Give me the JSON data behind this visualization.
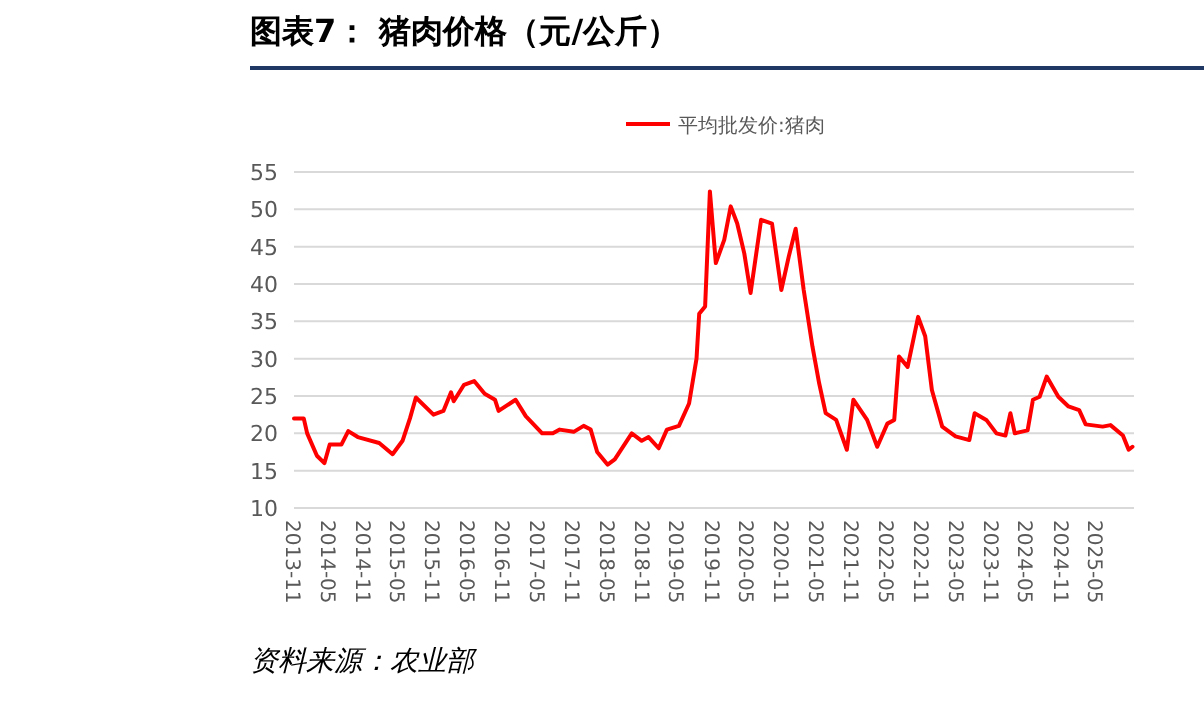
{
  "chart_data": {
    "type": "line",
    "title": "图表7：  猪肉价格（元/公斤）",
    "annotations": [
      "资料来源：农业部"
    ],
    "legend": "top",
    "grid": "y",
    "line_style": "solid",
    "marker": "none",
    "xlim": [
      "2013-11-01",
      "2025-11-15"
    ],
    "xticks": [
      "2013-11",
      "2014-05",
      "2014-11",
      "2015-05",
      "2015-11",
      "2016-05",
      "2016-11",
      "2017-05",
      "2017-11",
      "2018-05",
      "2018-11",
      "2019-05",
      "2019-11",
      "2020-05",
      "2020-11",
      "2021-05",
      "2021-11",
      "2022-05",
      "2022-11",
      "2023-05",
      "2023-11",
      "2024-05",
      "2024-11",
      "2025-05"
    ],
    "ylim": [
      10,
      55
    ],
    "yticks": [
      10,
      15,
      20,
      25,
      30,
      35,
      40,
      45,
      50,
      55
    ],
    "x": [
      "2013-11-01",
      "2013-12-22",
      "2014-01-09",
      "2014-03-01",
      "2014-04-09",
      "2014-05-07",
      "2014-07-07",
      "2014-08-12",
      "2014-10-01",
      "2015-01-21",
      "2015-04-01",
      "2015-05-23",
      "2015-07-01",
      "2015-08-01",
      "2015-11-01",
      "2015-12-23",
      "2016-02-01",
      "2016-02-15",
      "2016-04-09",
      "2016-06-01",
      "2016-07-26",
      "2016-09-18",
      "2016-10-07",
      "2017-01-04",
      "2017-02-26",
      "2017-05-23",
      "2017-07-18",
      "2017-08-23",
      "2017-11-04",
      "2017-12-26",
      "2018-02-01",
      "2018-03-07",
      "2018-05-01",
      "2018-06-07",
      "2018-09-04",
      "2018-10-26",
      "2018-12-01",
      "2019-01-23",
      "2019-03-07",
      "2019-05-09",
      "2019-07-01",
      "2019-08-09",
      "2019-08-23",
      "2019-09-23",
      "2019-10-18",
      "2019-11-18",
      "2020-01-01",
      "2020-02-04",
      "2020-03-09",
      "2020-04-15",
      "2020-05-18",
      "2020-07-12",
      "2020-09-07",
      "2020-10-26",
      "2020-12-04",
      "2021-01-09",
      "2021-02-20",
      "2021-04-07",
      "2021-05-12",
      "2021-06-15",
      "2021-08-09",
      "2021-10-04",
      "2021-11-07",
      "2022-01-18",
      "2022-03-12",
      "2022-05-04",
      "2022-06-09",
      "2022-07-04",
      "2022-08-18",
      "2022-10-12",
      "2022-11-18",
      "2022-12-23",
      "2023-02-15",
      "2023-04-26",
      "2023-07-07",
      "2023-08-04",
      "2023-10-04",
      "2023-11-26",
      "2024-01-12",
      "2024-02-07",
      "2024-03-01",
      "2024-05-07",
      "2024-06-04",
      "2024-07-09",
      "2024-08-15",
      "2024-10-15",
      "2024-12-07",
      "2025-02-01",
      "2025-03-07",
      "2025-06-04",
      "2025-07-15",
      "2025-09-18",
      "2025-10-18",
      "2025-11-07"
    ],
    "series": [
      {
        "name": "平均批发价:猪肉",
        "color": "#ff0000",
        "values": [
          22,
          22,
          20,
          17,
          16,
          18.5,
          18.5,
          20.3,
          19.5,
          18.7,
          17.2,
          19,
          22,
          24.8,
          22.5,
          23,
          25.5,
          24.3,
          26.5,
          27,
          25.3,
          24.5,
          23,
          24.5,
          22.3,
          20,
          20,
          20.5,
          20.2,
          21,
          20.5,
          17.5,
          15.8,
          16.5,
          20,
          19,
          19.5,
          18,
          20.5,
          21,
          24,
          30,
          36,
          37,
          52.4,
          42.8,
          45.9,
          50.4,
          48.1,
          44.1,
          38.8,
          48.6,
          48.1,
          39.2,
          43.7,
          47.4,
          39.2,
          31.6,
          26.7,
          22.7,
          21.8,
          17.8,
          24.5,
          21.8,
          18.2,
          21.3,
          21.8,
          30.3,
          28.9,
          35.6,
          33,
          25.8,
          20.9,
          19.6,
          19.1,
          22.7,
          21.8,
          20,
          19.7,
          22.7,
          20,
          20.4,
          24.5,
          24.9,
          27.6,
          24.9,
          23.6,
          23.1,
          21.2,
          20.9,
          21.1,
          19.7,
          17.8,
          18.2
        ]
      }
    ]
  }
}
